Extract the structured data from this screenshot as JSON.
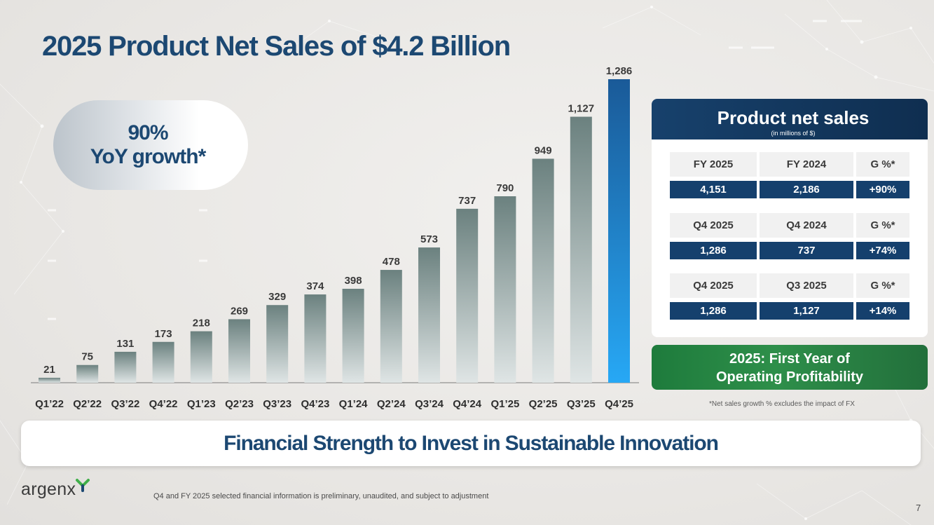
{
  "slide": {
    "title": "2025 Product Net Sales of $4.2 Billion",
    "page_number": "7",
    "disclaimer": "Q4 and FY 2025 selected financial information is preliminary, unaudited, and subject to adjustment",
    "footnote": "*Net sales growth % excludes the impact of FX",
    "banner": "Financial Strength to Invest in Sustainable Innovation",
    "logo_text": "argenx"
  },
  "growth_badge": {
    "line1": "90%",
    "line2": "YoY growth*"
  },
  "panel": {
    "title": "Product net sales",
    "subtitle": "(in millions of $)",
    "tables": [
      {
        "headers": [
          "FY 2025",
          "FY 2024",
          "G %*"
        ],
        "values": [
          "4,151",
          "2,186",
          "+90%"
        ]
      },
      {
        "headers": [
          "Q4 2025",
          "Q4 2024",
          "G %*"
        ],
        "values": [
          "1,286",
          "737",
          "+74%"
        ]
      },
      {
        "headers": [
          "Q4 2025",
          "Q3 2025",
          "G %*"
        ],
        "values": [
          "1,286",
          "1,127",
          "+14%"
        ]
      }
    ]
  },
  "profitability": {
    "line1": "2025: First Year of",
    "line2": "Operating Profitability"
  },
  "colors": {
    "title_blue": "#1c4872",
    "bar_gray_top": "#6b817f",
    "bar_gray_bottom": "#dfe5e5",
    "bar_highlight_top": "#1a5a98",
    "bar_highlight_bottom": "#27a8f5",
    "table_value_bg": "#15406d",
    "profit_green": "#2e8f4a"
  },
  "chart_data": {
    "type": "bar",
    "categories": [
      "Q1’22",
      "Q2’22",
      "Q3’22",
      "Q4’22",
      "Q1’23",
      "Q2’23",
      "Q3’23",
      "Q4’23",
      "Q1’24",
      "Q2’24",
      "Q3’24",
      "Q4’24",
      "Q1’25",
      "Q2’25",
      "Q3’25",
      "Q4’25"
    ],
    "values": [
      21,
      75,
      131,
      173,
      218,
      269,
      329,
      374,
      398,
      478,
      573,
      737,
      790,
      949,
      1127,
      1286
    ],
    "value_labels": [
      "21",
      "75",
      "131",
      "173",
      "218",
      "269",
      "329",
      "374",
      "398",
      "478",
      "573",
      "737",
      "790",
      "949",
      "1,127",
      "1,286"
    ],
    "highlight_index": 15,
    "ylim": [
      0,
      1286
    ],
    "grid": false,
    "axis_labels_shown": false
  }
}
